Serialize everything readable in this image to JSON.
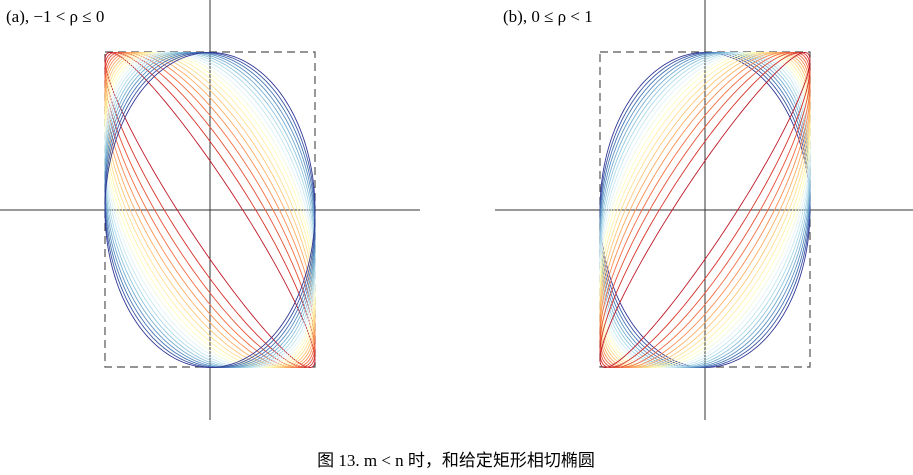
{
  "panels": [
    {
      "label": "(a), −1 < ρ ≤ 0",
      "rho": [
        -0.95,
        -0.9,
        -0.85,
        -0.8,
        -0.75,
        -0.7,
        -0.65,
        -0.6,
        -0.55,
        -0.5,
        -0.45,
        -0.4,
        -0.35,
        -0.3,
        -0.25,
        -0.2,
        -0.15,
        -0.1,
        -0.05,
        0
      ]
    },
    {
      "label": "(b), 0 ≤ ρ < 1",
      "rho": [
        0,
        0.05,
        0.1,
        0.15,
        0.2,
        0.25,
        0.3,
        0.35,
        0.4,
        0.45,
        0.5,
        0.55,
        0.6,
        0.65,
        0.7,
        0.75,
        0.8,
        0.85,
        0.9,
        0.95
      ]
    }
  ],
  "colormap": [
    "#313695",
    "#4575b4",
    "#74add1",
    "#abd9e9",
    "#e0f3f8",
    "#ffffbf",
    "#fee090",
    "#fdae61",
    "#f46d43",
    "#d73027",
    "#a50026"
  ],
  "caption": "图 13. m < n 时，和给定矩形相切椭圆"
}
